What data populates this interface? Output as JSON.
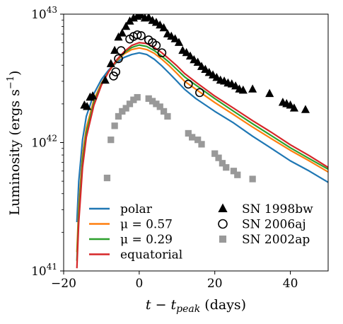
{
  "chart_data": {
    "type": "line",
    "xlabel": "t − t",
    "xlabel_sub": "peak",
    "xlabel_unit": " (days)",
    "ylabel": "Luminosity (ergs s",
    "ylabel_sup": "−1",
    "ylabel_close": ")",
    "xlim": [
      -20,
      50
    ],
    "ylim": [
      1e+41,
      1e+43
    ],
    "yscale": "log",
    "grid": false,
    "legend_position": "lower center",
    "x_ticks": [
      {
        "value": -20,
        "label": "−20"
      },
      {
        "value": 0,
        "label": "0"
      },
      {
        "value": 20,
        "label": "20"
      },
      {
        "value": 40,
        "label": "40"
      }
    ],
    "y_ticks": [
      {
        "value": 1e+41,
        "base": "10",
        "exp": "41"
      },
      {
        "value": 1e+42,
        "base": "10",
        "exp": "42"
      },
      {
        "value": 1e+43,
        "base": "10",
        "exp": "43"
      }
    ],
    "series": [
      {
        "name": "polar",
        "kind": "line",
        "color": "#1f77b4",
        "points": [
          [
            -16.5,
            2.4e+41
          ],
          [
            -16.0,
            5e+41
          ],
          [
            -15.0,
            1.05e+42
          ],
          [
            -14.0,
            1.6e+42
          ],
          [
            -12.0,
            2.4e+42
          ],
          [
            -10.0,
            3.1e+42
          ],
          [
            -8.0,
            3.7e+42
          ],
          [
            -6.0,
            4.2e+42
          ],
          [
            -4.0,
            4.6e+42
          ],
          [
            -2.0,
            4.85e+42
          ],
          [
            0.0,
            5e+42
          ],
          [
            2.0,
            4.85e+42
          ],
          [
            4.0,
            4.45e+42
          ],
          [
            6.0,
            3.95e+42
          ],
          [
            8.0,
            3.45e+42
          ],
          [
            10.0,
            3e+42
          ],
          [
            12.0,
            2.6e+42
          ],
          [
            15.0,
            2.2e+42
          ],
          [
            20.0,
            1.75e+42
          ],
          [
            25.0,
            1.42e+42
          ],
          [
            30.0,
            1.12e+42
          ],
          [
            35.0,
            9e+41
          ],
          [
            40.0,
            7.2e+41
          ],
          [
            45.0,
            6e+41
          ],
          [
            50.0,
            4.9e+41
          ]
        ]
      },
      {
        "name": "μ = 0.57",
        "kind": "line",
        "color": "#ff7f0e",
        "points": [
          [
            -16.5,
            1.4e+41
          ],
          [
            -16.0,
            3.2e+41
          ],
          [
            -15.0,
            8e+41
          ],
          [
            -14.0,
            1.3e+42
          ],
          [
            -12.0,
            2.15e+42
          ],
          [
            -10.0,
            2.9e+42
          ],
          [
            -8.0,
            3.6e+42
          ],
          [
            -6.0,
            4.3e+42
          ],
          [
            -4.0,
            4.9e+42
          ],
          [
            -2.0,
            5.3e+42
          ],
          [
            0.0,
            5.45e+42
          ],
          [
            2.0,
            5.3e+42
          ],
          [
            4.0,
            4.95e+42
          ],
          [
            6.0,
            4.45e+42
          ],
          [
            8.0,
            3.95e+42
          ],
          [
            10.0,
            3.45e+42
          ],
          [
            12.0,
            3e+42
          ],
          [
            15.0,
            2.6e+42
          ],
          [
            20.0,
            2.05e+42
          ],
          [
            25.0,
            1.65e+42
          ],
          [
            30.0,
            1.32e+42
          ],
          [
            35.0,
            1.07e+42
          ],
          [
            40.0,
            8.7e+41
          ],
          [
            45.0,
            7.2e+41
          ],
          [
            50.0,
            5.9e+41
          ]
        ]
      },
      {
        "name": "μ = 0.29",
        "kind": "line",
        "color": "#2ca02c",
        "points": [
          [
            -16.5,
            1.2e+41
          ],
          [
            -16.0,
            2.8e+41
          ],
          [
            -15.0,
            7.2e+41
          ],
          [
            -14.0,
            1.2e+42
          ],
          [
            -12.0,
            2.05e+42
          ],
          [
            -10.0,
            2.85e+42
          ],
          [
            -8.0,
            3.6e+42
          ],
          [
            -6.0,
            4.35e+42
          ],
          [
            -4.0,
            5e+42
          ],
          [
            -2.0,
            5.5e+42
          ],
          [
            0.0,
            5.75e+42
          ],
          [
            2.0,
            5.6e+42
          ],
          [
            4.0,
            5.2e+42
          ],
          [
            6.0,
            4.7e+42
          ],
          [
            8.0,
            4.2e+42
          ],
          [
            10.0,
            3.7e+42
          ],
          [
            12.0,
            3.25e+42
          ],
          [
            15.0,
            2.8e+42
          ],
          [
            20.0,
            2.2e+42
          ],
          [
            25.0,
            1.75e+42
          ],
          [
            30.0,
            1.4e+42
          ],
          [
            35.0,
            1.13e+42
          ],
          [
            40.0,
            9.1e+41
          ],
          [
            45.0,
            7.5e+41
          ],
          [
            50.0,
            6.2e+41
          ]
        ]
      },
      {
        "name": "equatorial",
        "kind": "line",
        "color": "#d62728",
        "points": [
          [
            -16.5,
            1.05e+41
          ],
          [
            -16.0,
            2.4e+41
          ],
          [
            -15.0,
            6.4e+41
          ],
          [
            -14.0,
            1.1e+42
          ],
          [
            -12.0,
            1.95e+42
          ],
          [
            -10.0,
            2.8e+42
          ],
          [
            -8.0,
            3.6e+42
          ],
          [
            -6.0,
            4.4e+42
          ],
          [
            -4.0,
            5.1e+42
          ],
          [
            -2.0,
            5.7e+42
          ],
          [
            0.0,
            6e+42
          ],
          [
            2.0,
            5.9e+42
          ],
          [
            4.0,
            5.5e+42
          ],
          [
            6.0,
            5e+42
          ],
          [
            8.0,
            4.45e+42
          ],
          [
            10.0,
            3.95e+42
          ],
          [
            12.0,
            3.45e+42
          ],
          [
            15.0,
            2.95e+42
          ],
          [
            20.0,
            2.3e+42
          ],
          [
            25.0,
            1.85e+42
          ],
          [
            30.0,
            1.48e+42
          ],
          [
            35.0,
            1.2e+42
          ],
          [
            40.0,
            9.6e+41
          ],
          [
            45.0,
            7.9e+41
          ],
          [
            50.0,
            6.4e+41
          ]
        ]
      },
      {
        "name": "SN 1998bw",
        "kind": "marker",
        "marker": "triangle",
        "color": "#000000",
        "points": [
          [
            -14.5,
            1.95e+42
          ],
          [
            -13.8,
            1.9e+42
          ],
          [
            -13.0,
            2.25e+42
          ],
          [
            -12.3,
            2.3e+42
          ],
          [
            -9.0,
            3.05e+42
          ],
          [
            -7.5,
            4.1e+42
          ],
          [
            -6.5,
            5.2e+42
          ],
          [
            -5.5,
            6.6e+42
          ],
          [
            -4.5,
            7.1e+42
          ],
          [
            -3.5,
            8e+42
          ],
          [
            -2.5,
            8.8e+42
          ],
          [
            -1.5,
            9.3e+42
          ],
          [
            -0.5,
            9.6e+42
          ],
          [
            0.5,
            9.8e+42
          ],
          [
            1.5,
            9.3e+42
          ],
          [
            2.5,
            9.4e+42
          ],
          [
            3.5,
            8.9e+42
          ],
          [
            4.5,
            8.6e+42
          ],
          [
            5.5,
            8.2e+42
          ],
          [
            6.5,
            7.8e+42
          ],
          [
            7.5,
            7e+42
          ],
          [
            8.5,
            6.7e+42
          ],
          [
            9.5,
            6.4e+42
          ],
          [
            10.5,
            6e+42
          ],
          [
            11.5,
            5.2e+42
          ],
          [
            12.5,
            5e+42
          ],
          [
            13.5,
            4.7e+42
          ],
          [
            14.5,
            4.4e+42
          ],
          [
            15.5,
            4.2e+42
          ],
          [
            16.5,
            3.9e+42
          ],
          [
            17.5,
            3.7e+42
          ],
          [
            18.5,
            3.5e+42
          ],
          [
            19.5,
            3.35e+42
          ],
          [
            20.5,
            3.2e+42
          ],
          [
            21.5,
            3.05e+42
          ],
          [
            22.5,
            3e+42
          ],
          [
            23.5,
            2.9e+42
          ],
          [
            24.5,
            2.85e+42
          ],
          [
            25.5,
            2.75e+42
          ],
          [
            26.5,
            2.6e+42
          ],
          [
            27.5,
            2.55e+42
          ],
          [
            30.0,
            2.6e+42
          ],
          [
            34.5,
            2.4e+42
          ],
          [
            38.0,
            2.05e+42
          ],
          [
            39.0,
            2e+42
          ],
          [
            40.0,
            1.95e+42
          ],
          [
            41.0,
            1.85e+42
          ],
          [
            44.0,
            1.8e+42
          ]
        ]
      },
      {
        "name": "SN 2006aj",
        "kind": "marker",
        "marker": "circle",
        "color": "#000000",
        "points": [
          [
            -6.8,
            3.3e+42
          ],
          [
            -6.2,
            3.55e+42
          ],
          [
            -5.5,
            4.5e+42
          ],
          [
            -4.8,
            5.2e+42
          ],
          [
            -2.5,
            6.4e+42
          ],
          [
            -1.5,
            6.7e+42
          ],
          [
            -0.5,
            6.9e+42
          ],
          [
            0.5,
            6.8e+42
          ],
          [
            2.5,
            6.3e+42
          ],
          [
            3.5,
            6e+42
          ],
          [
            4.5,
            5.7e+42
          ],
          [
            6.0,
            5e+42
          ],
          [
            13.0,
            2.85e+42
          ],
          [
            16.0,
            2.45e+42
          ]
        ]
      },
      {
        "name": "SN 2002ap",
        "kind": "marker",
        "marker": "square",
        "color": "#999999",
        "points": [
          [
            -8.5,
            5.3e+41
          ],
          [
            -7.5,
            1.05e+42
          ],
          [
            -6.5,
            1.35e+42
          ],
          [
            -5.5,
            1.6e+42
          ],
          [
            -4.5,
            1.75e+42
          ],
          [
            -3.5,
            1.85e+42
          ],
          [
            -2.5,
            2e+42
          ],
          [
            -1.5,
            2.15e+42
          ],
          [
            -0.5,
            2.25e+42
          ],
          [
            2.5,
            2.2e+42
          ],
          [
            3.5,
            2.1e+42
          ],
          [
            4.5,
            2e+42
          ],
          [
            5.5,
            1.9e+42
          ],
          [
            6.5,
            1.75e+42
          ],
          [
            7.5,
            1.6e+42
          ],
          [
            13.0,
            1.18e+42
          ],
          [
            14.0,
            1.1e+42
          ],
          [
            15.5,
            1.05e+42
          ],
          [
            16.5,
            9.7e+41
          ],
          [
            20.0,
            8.2e+41
          ],
          [
            21.0,
            7.6e+41
          ],
          [
            22.0,
            6.9e+41
          ],
          [
            23.0,
            6.4e+41
          ],
          [
            25.0,
            6e+41
          ],
          [
            26.0,
            5.6e+41
          ],
          [
            30.0,
            5.2e+41
          ]
        ]
      }
    ]
  }
}
